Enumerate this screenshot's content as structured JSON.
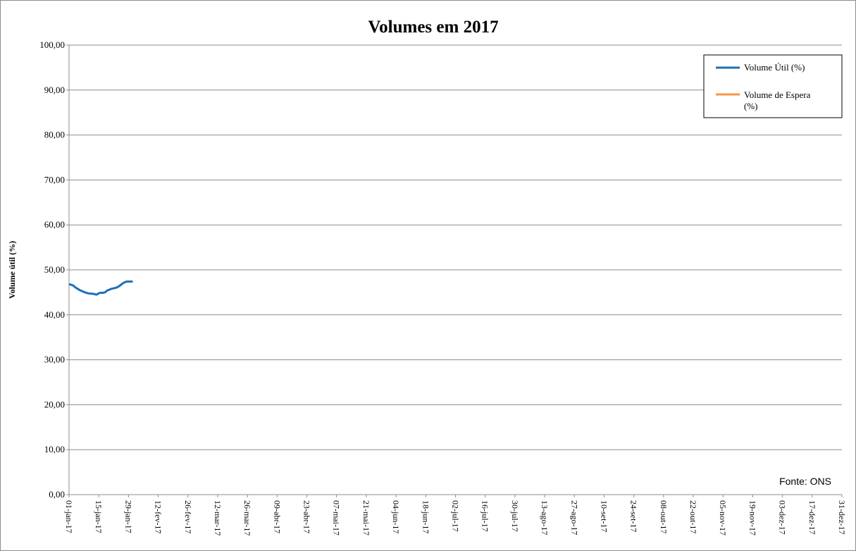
{
  "chart_data": {
    "type": "line",
    "title": "Volumes em 2017",
    "ylabel": "Volume útil (%)",
    "xlabel": "",
    "ylim": [
      0,
      100
    ],
    "ytick_step": 10,
    "yticks": [
      "0,00",
      "10,00",
      "20,00",
      "30,00",
      "40,00",
      "50,00",
      "60,00",
      "70,00",
      "80,00",
      "90,00",
      "100,00"
    ],
    "xlim": [
      "2017-01-01",
      "2017-12-31"
    ],
    "xticks": [
      {
        "date": "2017-01-01",
        "label": "01-jan-17"
      },
      {
        "date": "2017-01-15",
        "label": "15-jan-17"
      },
      {
        "date": "2017-01-29",
        "label": "29-jan-17"
      },
      {
        "date": "2017-02-12",
        "label": "12-fev-17"
      },
      {
        "date": "2017-02-26",
        "label": "26-fev-17"
      },
      {
        "date": "2017-03-12",
        "label": "12-mar-17"
      },
      {
        "date": "2017-03-26",
        "label": "26-mar-17"
      },
      {
        "date": "2017-04-09",
        "label": "09-abr-17"
      },
      {
        "date": "2017-04-23",
        "label": "23-abr-17"
      },
      {
        "date": "2017-05-07",
        "label": "07-mai-17"
      },
      {
        "date": "2017-05-21",
        "label": "21-mai-17"
      },
      {
        "date": "2017-06-04",
        "label": "04-jun-17"
      },
      {
        "date": "2017-06-18",
        "label": "18-jun-17"
      },
      {
        "date": "2017-07-02",
        "label": "02-jul-17"
      },
      {
        "date": "2017-07-16",
        "label": "16-jul-17"
      },
      {
        "date": "2017-07-30",
        "label": "30-jul-17"
      },
      {
        "date": "2017-08-13",
        "label": "13-ago-17"
      },
      {
        "date": "2017-08-27",
        "label": "27-ago-17"
      },
      {
        "date": "2017-09-10",
        "label": "10-set-17"
      },
      {
        "date": "2017-09-24",
        "label": "24-set-17"
      },
      {
        "date": "2017-10-08",
        "label": "08-out-17"
      },
      {
        "date": "2017-10-22",
        "label": "22-out-17"
      },
      {
        "date": "2017-11-05",
        "label": "05-nov-17"
      },
      {
        "date": "2017-11-19",
        "label": "19-nov-17"
      },
      {
        "date": "2017-12-03",
        "label": "03-dez-17"
      },
      {
        "date": "2017-12-17",
        "label": "17-dez-17"
      },
      {
        "date": "2017-12-31",
        "label": "31-dez-17"
      }
    ],
    "grid": true,
    "legend_position": "top-right",
    "source_note": "Fonte: ONS",
    "series": [
      {
        "name": "Volume Útil (%)",
        "color": "#1f6fb8",
        "points": [
          {
            "x": "2017-01-01",
            "y": 46.8
          },
          {
            "x": "2017-01-02",
            "y": 46.7
          },
          {
            "x": "2017-01-03",
            "y": 46.5
          },
          {
            "x": "2017-01-04",
            "y": 46.1
          },
          {
            "x": "2017-01-05",
            "y": 45.8
          },
          {
            "x": "2017-01-06",
            "y": 45.5
          },
          {
            "x": "2017-01-07",
            "y": 45.3
          },
          {
            "x": "2017-01-08",
            "y": 45.1
          },
          {
            "x": "2017-01-09",
            "y": 44.9
          },
          {
            "x": "2017-01-10",
            "y": 44.8
          },
          {
            "x": "2017-01-11",
            "y": 44.7
          },
          {
            "x": "2017-01-12",
            "y": 44.7
          },
          {
            "x": "2017-01-13",
            "y": 44.6
          },
          {
            "x": "2017-01-14",
            "y": 44.5
          },
          {
            "x": "2017-01-15",
            "y": 44.8
          },
          {
            "x": "2017-01-16",
            "y": 44.9
          },
          {
            "x": "2017-01-17",
            "y": 44.9
          },
          {
            "x": "2017-01-18",
            "y": 45.0
          },
          {
            "x": "2017-01-19",
            "y": 45.4
          },
          {
            "x": "2017-01-20",
            "y": 45.6
          },
          {
            "x": "2017-01-21",
            "y": 45.8
          },
          {
            "x": "2017-01-22",
            "y": 45.9
          },
          {
            "x": "2017-01-23",
            "y": 46.0
          },
          {
            "x": "2017-01-24",
            "y": 46.2
          },
          {
            "x": "2017-01-25",
            "y": 46.5
          },
          {
            "x": "2017-01-26",
            "y": 46.9
          },
          {
            "x": "2017-01-27",
            "y": 47.2
          },
          {
            "x": "2017-01-28",
            "y": 47.4
          },
          {
            "x": "2017-01-29",
            "y": 47.4
          },
          {
            "x": "2017-01-30",
            "y": 47.4
          },
          {
            "x": "2017-01-31",
            "y": 47.4
          }
        ]
      },
      {
        "name": "Volume de Espera (%)",
        "color": "#f79646",
        "points": []
      }
    ]
  }
}
